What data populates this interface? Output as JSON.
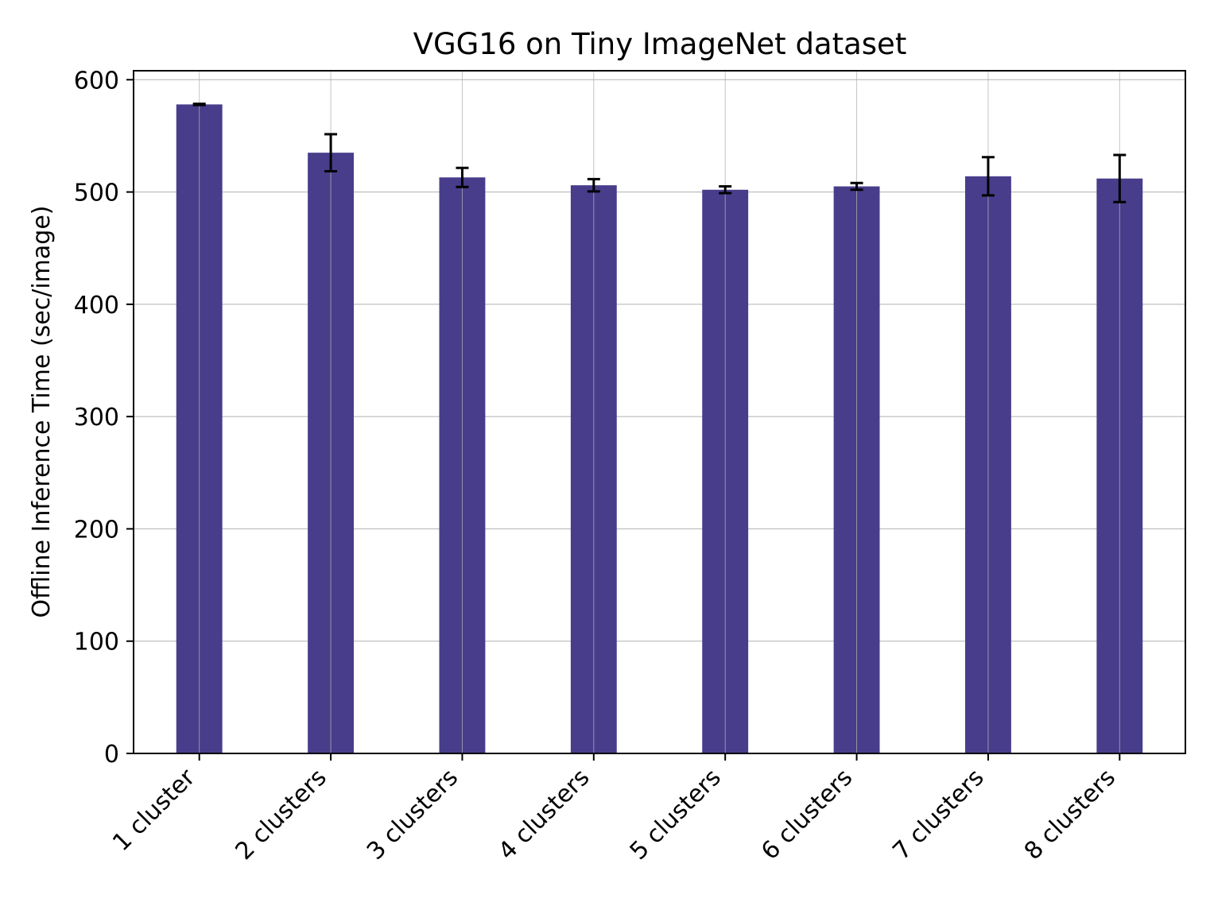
{
  "chart_data": {
    "type": "bar",
    "title": "VGG16 on Tiny ImageNet dataset",
    "xlabel": "",
    "ylabel": "Offline Inference Time (sec/image)",
    "categories": [
      "1 cluster",
      "2 clusters",
      "3 clusters",
      "4 clusters",
      "5 clusters",
      "6 clusters",
      "7 clusters",
      "8 clusters"
    ],
    "values": [
      578,
      535,
      513,
      506,
      502,
      505,
      514,
      512
    ],
    "errors": [
      0.5,
      16.5,
      8.5,
      5.5,
      3,
      3,
      17,
      21
    ],
    "ylim": [
      0,
      608
    ],
    "yticks": [
      0,
      100,
      200,
      300,
      400,
      500,
      600
    ],
    "ytick_labels": [
      "0",
      "100",
      "200",
      "300",
      "400",
      "500",
      "600"
    ],
    "grid": true,
    "bar_color": "#483D8B",
    "error_color": "#000000",
    "grid_color": "#b0b0b0"
  }
}
